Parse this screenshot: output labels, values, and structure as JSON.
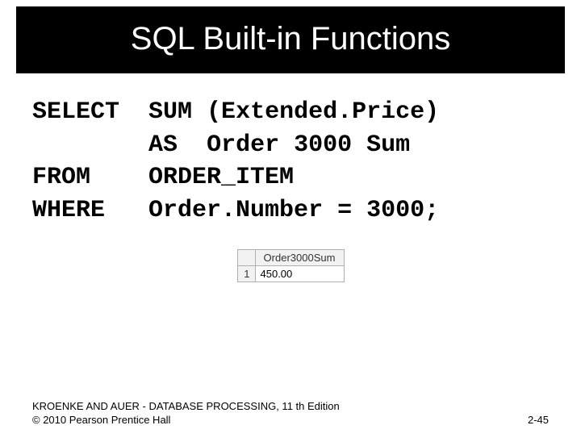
{
  "title": "SQL Built-in Functions",
  "sql": {
    "kw_select": "SELECT",
    "select_expr": "SUM (Extended.Price)",
    "as_kw": "AS",
    "alias": "Order 3000 Sum",
    "kw_from": "FROM",
    "from_tbl": "ORDER_ITEM",
    "kw_where": "WHERE",
    "where_expr": "Order.Number = 3000;"
  },
  "result": {
    "header": "Order3000Sum",
    "rownum": "1",
    "value": "450.00",
    "header_bg": "#f2f2f2",
    "cell_bg": "#ffffff",
    "border_color": "#b0b0b0"
  },
  "footer": {
    "line1": "KROENKE AND AUER - DATABASE PROCESSING, 11 th Edition",
    "line2": "© 2010 Pearson Prentice Hall",
    "page": "2-45"
  },
  "colors": {
    "title_bg": "#000000",
    "title_fg": "#ffffff",
    "page_bg": "#ffffff",
    "text": "#000000"
  }
}
